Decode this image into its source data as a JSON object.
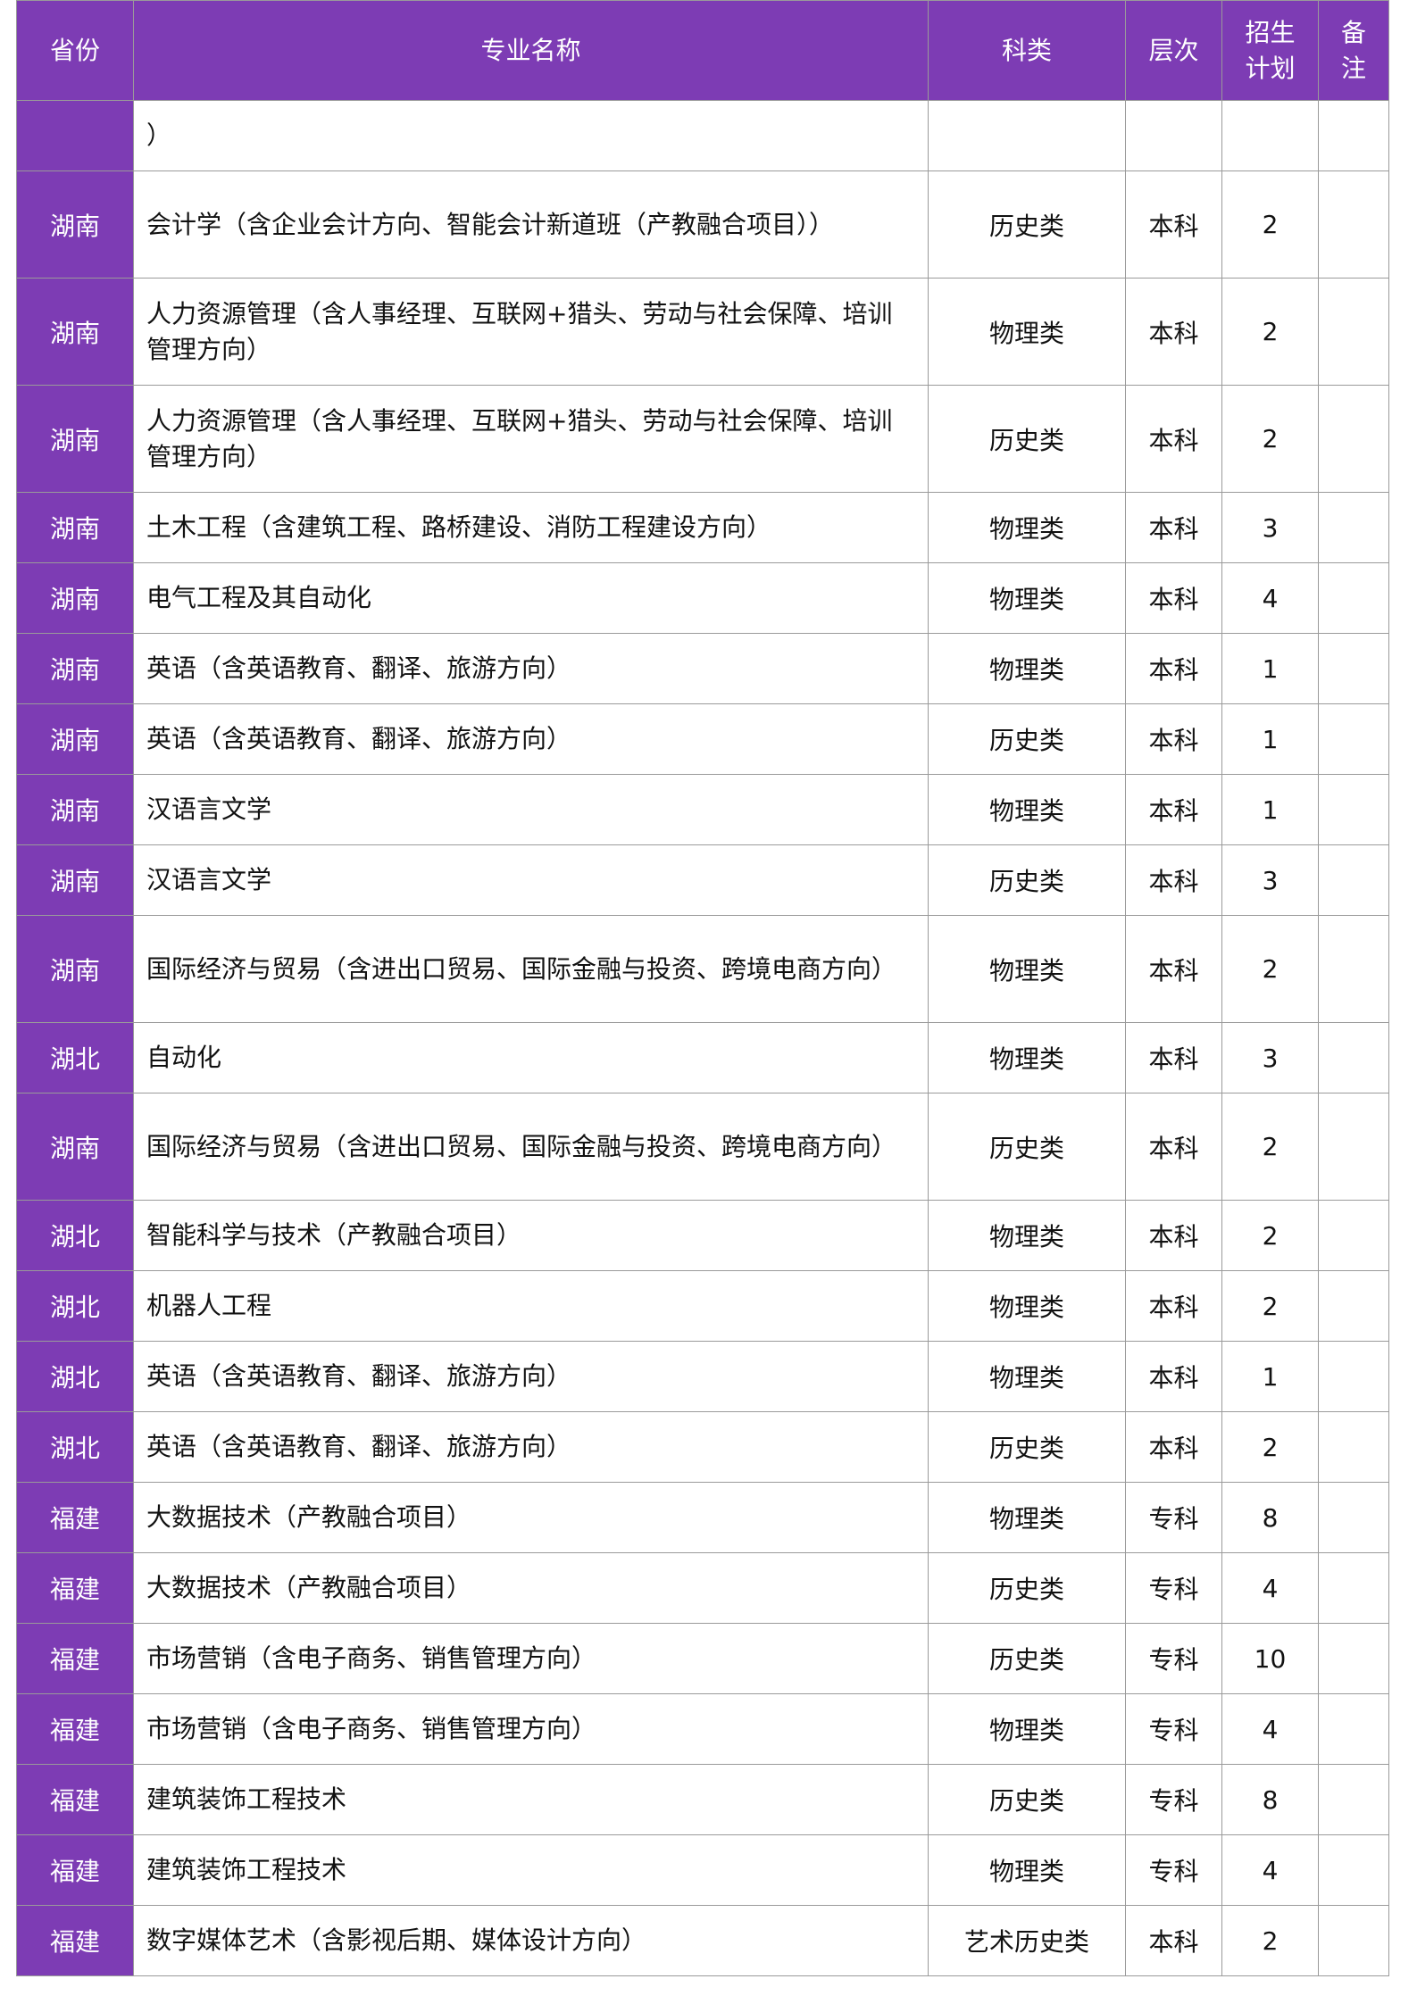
{
  "headers": {
    "province": "省份",
    "major": "专业名称",
    "category": "科类",
    "level": "层次",
    "plan": "招生计划",
    "note": "备注"
  },
  "colors": {
    "header_bg": "#7d3cb4",
    "province_bg": "#7d3cb4"
  },
  "rows": [
    {
      "province": "",
      "major": "）",
      "category": "",
      "level": "",
      "plan": "",
      "note": ""
    },
    {
      "province": "湖南",
      "major": "会计学（含企业会计方向、智能会计新道班（产教融合项目））",
      "category": "历史类",
      "level": "本科",
      "plan": "2",
      "note": ""
    },
    {
      "province": "湖南",
      "major": "人力资源管理（含人事经理、互联网+猎头、劳动与社会保障、培训管理方向）",
      "category": "物理类",
      "level": "本科",
      "plan": "2",
      "note": ""
    },
    {
      "province": "湖南",
      "major": "人力资源管理（含人事经理、互联网+猎头、劳动与社会保障、培训管理方向）",
      "category": "历史类",
      "level": "本科",
      "plan": "2",
      "note": ""
    },
    {
      "province": "湖南",
      "major": "土木工程（含建筑工程、路桥建设、消防工程建设方向）",
      "category": "物理类",
      "level": "本科",
      "plan": "3",
      "note": ""
    },
    {
      "province": "湖南",
      "major": "电气工程及其自动化",
      "category": "物理类",
      "level": "本科",
      "plan": "4",
      "note": ""
    },
    {
      "province": "湖南",
      "major": "英语（含英语教育、翻译、旅游方向）",
      "category": "物理类",
      "level": "本科",
      "plan": "1",
      "note": ""
    },
    {
      "province": "湖南",
      "major": "英语（含英语教育、翻译、旅游方向）",
      "category": "历史类",
      "level": "本科",
      "plan": "1",
      "note": ""
    },
    {
      "province": "湖南",
      "major": "汉语言文学",
      "category": "物理类",
      "level": "本科",
      "plan": "1",
      "note": ""
    },
    {
      "province": "湖南",
      "major": "汉语言文学",
      "category": "历史类",
      "level": "本科",
      "plan": "3",
      "note": ""
    },
    {
      "province": "湖南",
      "major": "国际经济与贸易（含进出口贸易、国际金融与投资、跨境电商方向）",
      "category": "物理类",
      "level": "本科",
      "plan": "2",
      "note": ""
    },
    {
      "province": "湖北",
      "major": "自动化",
      "category": "物理类",
      "level": "本科",
      "plan": "3",
      "note": ""
    },
    {
      "province": "湖南",
      "major": "国际经济与贸易（含进出口贸易、国际金融与投资、跨境电商方向）",
      "category": "历史类",
      "level": "本科",
      "plan": "2",
      "note": ""
    },
    {
      "province": "湖北",
      "major": "智能科学与技术（产教融合项目）",
      "category": "物理类",
      "level": "本科",
      "plan": "2",
      "note": ""
    },
    {
      "province": "湖北",
      "major": "机器人工程",
      "category": "物理类",
      "level": "本科",
      "plan": "2",
      "note": ""
    },
    {
      "province": "湖北",
      "major": "英语（含英语教育、翻译、旅游方向）",
      "category": "物理类",
      "level": "本科",
      "plan": "1",
      "note": ""
    },
    {
      "province": "湖北",
      "major": "英语（含英语教育、翻译、旅游方向）",
      "category": "历史类",
      "level": "本科",
      "plan": "2",
      "note": ""
    },
    {
      "province": "福建",
      "major": "大数据技术（产教融合项目）",
      "category": "物理类",
      "level": "专科",
      "plan": "8",
      "note": ""
    },
    {
      "province": "福建",
      "major": "大数据技术（产教融合项目）",
      "category": "历史类",
      "level": "专科",
      "plan": "4",
      "note": ""
    },
    {
      "province": "福建",
      "major": "市场营销（含电子商务、销售管理方向）",
      "category": "历史类",
      "level": "专科",
      "plan": "10",
      "note": ""
    },
    {
      "province": "福建",
      "major": "市场营销（含电子商务、销售管理方向）",
      "category": "物理类",
      "level": "专科",
      "plan": "4",
      "note": ""
    },
    {
      "province": "福建",
      "major": "建筑装饰工程技术",
      "category": "历史类",
      "level": "专科",
      "plan": "8",
      "note": ""
    },
    {
      "province": "福建",
      "major": "建筑装饰工程技术",
      "category": "物理类",
      "level": "专科",
      "plan": "4",
      "note": ""
    },
    {
      "province": "福建",
      "major": "数字媒体艺术（含影视后期、媒体设计方向）",
      "category": "艺术历史类",
      "level": "本科",
      "plan": "2",
      "note": ""
    }
  ]
}
